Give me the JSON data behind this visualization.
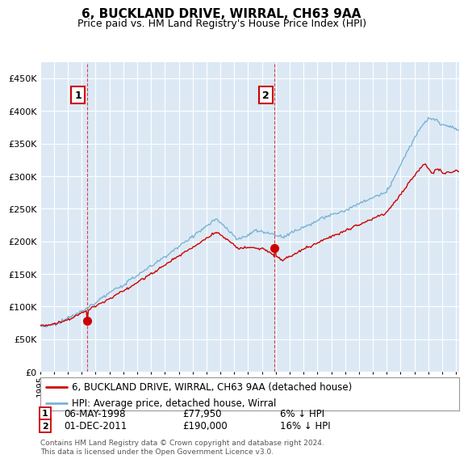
{
  "title": "6, BUCKLAND DRIVE, WIRRAL, CH63 9AA",
  "subtitle": "Price paid vs. HM Land Registry's House Price Index (HPI)",
  "ytick_values": [
    0,
    50000,
    100000,
    150000,
    200000,
    250000,
    300000,
    350000,
    400000,
    450000
  ],
  "ylim": [
    0,
    475000
  ],
  "xlim_start": 1995.0,
  "xlim_end": 2025.2,
  "legend_line1": "6, BUCKLAND DRIVE, WIRRAL, CH63 9AA (detached house)",
  "legend_line2": "HPI: Average price, detached house, Wirral",
  "marker1_date": 1998.37,
  "marker1_label": "1",
  "marker1_price": 77950,
  "marker2_date": 2011.92,
  "marker2_label": "2",
  "marker2_price": 190000,
  "hpi_line_color": "#7ab3d4",
  "price_line_color": "#cc0000",
  "vline_color": "#cc0000",
  "background_color": "#ffffff",
  "plot_bg_color": "#dce9f5",
  "grid_color": "#ffffff",
  "footnote": "Contains HM Land Registry data © Crown copyright and database right 2024.\nThis data is licensed under the Open Government Licence v3.0."
}
